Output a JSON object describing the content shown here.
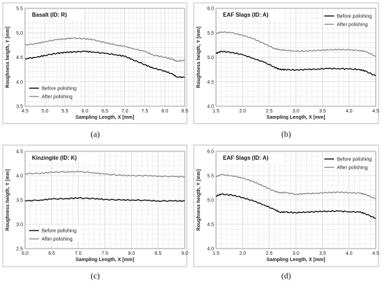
{
  "chart_data": [
    {
      "type": "line",
      "caption": "(a)",
      "title": "Basalt (ID: R)",
      "xlabel": "Sampling Length, X [mm]",
      "ylabel": "Roughness heigth, Y [mm]",
      "xlim": [
        4.5,
        8.5
      ],
      "ylim": [
        3.5,
        5.5
      ],
      "xticks": [
        "4.5",
        "5.0",
        "5.5",
        "6.0",
        "6.5",
        "7.0",
        "7.5",
        "8.0",
        "8.5"
      ],
      "yticks": [
        "3.5",
        "4.0",
        "4.5",
        "5.0",
        "5.5"
      ],
      "grid": true,
      "legend_position": "bottom-left",
      "series": [
        {
          "name": "Before polishing",
          "color": "#000000",
          "x": [
            4.5,
            4.8,
            5.0,
            5.3,
            5.5,
            5.7,
            6.0,
            6.2,
            6.5,
            6.8,
            7.0,
            7.2,
            7.5,
            7.7,
            8.0,
            8.2,
            8.3,
            8.5
          ],
          "y": [
            4.47,
            4.5,
            4.54,
            4.58,
            4.6,
            4.61,
            4.62,
            4.61,
            4.58,
            4.55,
            4.52,
            4.45,
            4.35,
            4.28,
            4.22,
            4.15,
            4.1,
            4.09
          ]
        },
        {
          "name": "After polishing",
          "color": "#888888",
          "x": [
            4.5,
            4.8,
            5.0,
            5.3,
            5.5,
            5.7,
            6.0,
            6.2,
            6.5,
            6.8,
            7.0,
            7.2,
            7.5,
            7.7,
            8.0,
            8.2,
            8.3,
            8.5
          ],
          "y": [
            4.75,
            4.78,
            4.82,
            4.86,
            4.88,
            4.89,
            4.88,
            4.86,
            4.8,
            4.75,
            4.72,
            4.68,
            4.62,
            4.55,
            4.5,
            4.46,
            4.42,
            4.44
          ]
        }
      ]
    },
    {
      "type": "line",
      "caption": "(b)",
      "title": "EAF Slags (ID: A)",
      "xlabel": "Sampling Length, X [mm]",
      "ylabel": "Roughness heigth, Y [mm]",
      "xlim": [
        1.5,
        4.5
      ],
      "ylim": [
        4.0,
        6.0
      ],
      "xticks": [
        "1.5",
        "2.0",
        "2.5",
        "3.0",
        "3.5",
        "4.0",
        "4.5"
      ],
      "yticks": [
        "4.0",
        "4.5",
        "5.0",
        "5.5",
        "6.0"
      ],
      "grid": true,
      "legend_position": "top-right",
      "series": [
        {
          "name": "Before polishing",
          "color": "#000000",
          "x": [
            1.5,
            1.6,
            1.8,
            2.0,
            2.2,
            2.4,
            2.6,
            2.7,
            2.8,
            3.0,
            3.2,
            3.4,
            3.6,
            3.8,
            4.0,
            4.2,
            4.3,
            4.5
          ],
          "y": [
            5.08,
            5.12,
            5.1,
            5.05,
            4.98,
            4.9,
            4.8,
            4.75,
            4.75,
            4.74,
            4.75,
            4.76,
            4.77,
            4.77,
            4.76,
            4.75,
            4.72,
            4.62
          ]
        },
        {
          "name": "After polishing",
          "color": "#888888",
          "x": [
            1.5,
            1.6,
            1.8,
            2.0,
            2.2,
            2.4,
            2.6,
            2.7,
            2.8,
            3.0,
            3.2,
            3.4,
            3.6,
            3.8,
            4.0,
            4.2,
            4.3,
            4.5
          ],
          "y": [
            5.48,
            5.52,
            5.5,
            5.45,
            5.38,
            5.28,
            5.18,
            5.15,
            5.15,
            5.12,
            5.13,
            5.14,
            5.15,
            5.16,
            5.15,
            5.14,
            5.12,
            5.02
          ]
        }
      ]
    },
    {
      "type": "line",
      "caption": "(c)",
      "title": "Kinzingite (ID: K)",
      "xlabel": "Sampling Length, X [mm]",
      "ylabel": "Roughness heigth, Y [mm]",
      "xlim": [
        6.0,
        9.0
      ],
      "ylim": [
        2.5,
        4.5
      ],
      "xticks": [
        "6.0",
        "6.5",
        "7.0",
        "7.5",
        "8.0",
        "8.5",
        "9.0"
      ],
      "yticks": [
        "2.5",
        "3.0",
        "3.5",
        "4.0",
        "4.5"
      ],
      "grid": true,
      "legend_position": "bottom-left",
      "series": [
        {
          "name": "Before polishing",
          "color": "#000000",
          "x": [
            6.0,
            6.3,
            6.5,
            6.8,
            7.0,
            7.3,
            7.5,
            7.8,
            8.0,
            8.3,
            8.5,
            8.8,
            9.0
          ],
          "y": [
            3.48,
            3.5,
            3.52,
            3.53,
            3.54,
            3.53,
            3.51,
            3.5,
            3.5,
            3.49,
            3.48,
            3.48,
            3.48
          ]
        },
        {
          "name": "After polishing",
          "color": "#888888",
          "x": [
            6.0,
            6.3,
            6.5,
            6.8,
            7.0,
            7.3,
            7.5,
            7.8,
            8.0,
            8.3,
            8.5,
            8.8,
            9.0
          ],
          "y": [
            4.04,
            4.05,
            4.07,
            4.08,
            4.08,
            4.06,
            4.03,
            4.01,
            4.0,
            4.0,
            3.99,
            3.98,
            3.98
          ]
        }
      ]
    },
    {
      "type": "line",
      "caption": "(d)",
      "title": "EAF Slags (ID: A)",
      "xlabel": "Sampling Length, X [mm]",
      "ylabel": "Roughness heigth, Y [mm]",
      "xlim": [
        1.5,
        4.5
      ],
      "ylim": [
        4.0,
        6.0
      ],
      "xticks": [
        "1.5",
        "2.0",
        "2.5",
        "3.0",
        "3.5",
        "4.0",
        "4.5"
      ],
      "yticks": [
        "4.0",
        "4.5",
        "5.0",
        "5.5",
        "6.0"
      ],
      "grid": true,
      "legend_position": "top-right",
      "series": [
        {
          "name": "Before polishing",
          "color": "#000000",
          "x": [
            1.5,
            1.6,
            1.8,
            2.0,
            2.2,
            2.4,
            2.6,
            2.7,
            2.8,
            3.0,
            3.2,
            3.4,
            3.6,
            3.8,
            4.0,
            4.2,
            4.3,
            4.5
          ],
          "y": [
            5.08,
            5.12,
            5.1,
            5.05,
            4.98,
            4.9,
            4.8,
            4.75,
            4.75,
            4.74,
            4.75,
            4.76,
            4.77,
            4.77,
            4.76,
            4.75,
            4.72,
            4.62
          ]
        },
        {
          "name": "After polishing",
          "color": "#888888",
          "x": [
            1.5,
            1.6,
            1.8,
            2.0,
            2.2,
            2.4,
            2.6,
            2.7,
            2.8,
            3.0,
            3.2,
            3.4,
            3.6,
            3.8,
            4.0,
            4.2,
            4.3,
            4.5
          ],
          "y": [
            5.48,
            5.52,
            5.5,
            5.45,
            5.38,
            5.28,
            5.18,
            5.15,
            5.15,
            5.12,
            5.13,
            5.14,
            5.15,
            5.16,
            5.15,
            5.14,
            5.12,
            5.02
          ]
        }
      ]
    }
  ]
}
